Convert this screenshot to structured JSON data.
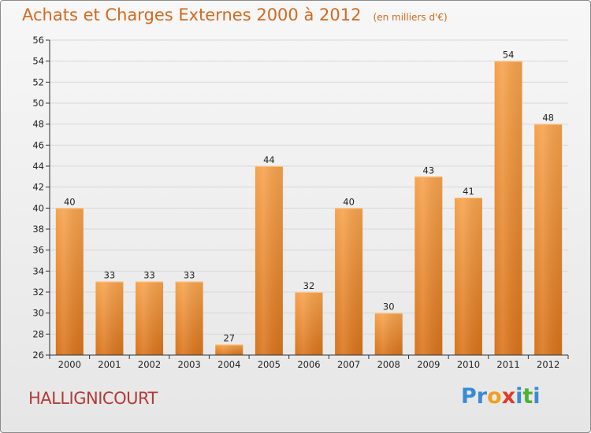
{
  "title": "Achats et Charges Externes 2000 à 2012",
  "unit": "(en milliers d'€)",
  "commune": "HALLIGNICOURT",
  "brand": {
    "letters": [
      "P",
      "r",
      "o",
      "x",
      "i",
      "t",
      "i"
    ],
    "colors": [
      "#3a8ad6",
      "#3a8ad6",
      "#f0a020",
      "#e03a2a",
      "#3a8ad6",
      "#50b030",
      "#3a8ad6"
    ]
  },
  "colors": {
    "bar_top": "#f6a24c",
    "bar_bottom": "#d9731a",
    "axis": "#333333",
    "grid": "#d8d8d8",
    "accent_text": "#d2691e"
  },
  "chart_data": {
    "type": "bar",
    "categories": [
      "2000",
      "2001",
      "2002",
      "2003",
      "2004",
      "2005",
      "2006",
      "2007",
      "2008",
      "2009",
      "2010",
      "2011",
      "2012"
    ],
    "values": [
      40,
      33,
      33,
      33,
      27,
      44,
      32,
      40,
      30,
      43,
      41,
      54,
      48
    ],
    "title": "Achats et Charges Externes 2000 à 2012",
    "subtitle": "(en milliers d'€)",
    "xlabel": "",
    "ylabel": "",
    "ylim": [
      26,
      56
    ],
    "yticks": [
      26,
      28,
      30,
      32,
      34,
      36,
      38,
      40,
      42,
      44,
      46,
      48,
      50,
      52,
      54,
      56
    ],
    "grid": true,
    "data_labels": true
  }
}
